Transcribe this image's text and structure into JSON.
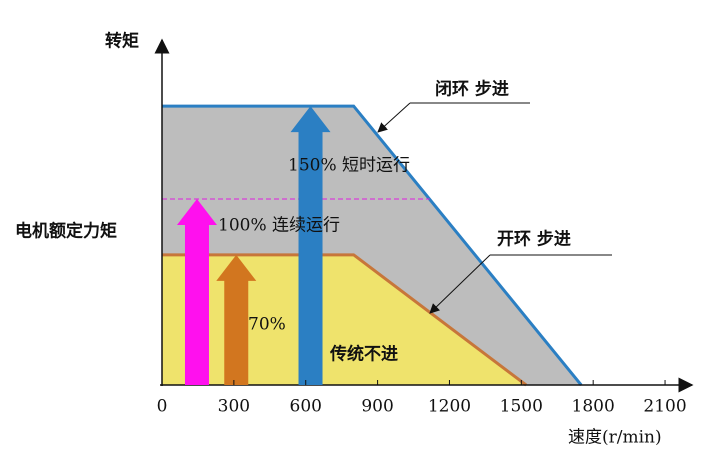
{
  "chart_data": {
    "type": "area",
    "y_label": "转矩",
    "rated_label": "电机额定力矩",
    "x_label": "速度(r/min)",
    "region_label": "传统不进",
    "xlim": [
      0,
      2200
    ],
    "ylim": [
      0,
      185
    ],
    "xticks": [
      0,
      300,
      600,
      900,
      1200,
      1500,
      1800,
      2100
    ],
    "rated_value": 100,
    "series": [
      {
        "name": "闭环 步进",
        "color": "#2b7fc3",
        "fill": "#bdbdbd",
        "x": [
          0,
          800,
          1750
        ],
        "values": [
          150,
          150,
          0
        ]
      },
      {
        "name": "开环 步进",
        "color": "#c7763a",
        "fill": "#efe36c",
        "x": [
          0,
          800,
          1520
        ],
        "values": [
          70,
          70,
          0
        ]
      }
    ],
    "arrows": [
      {
        "label": "150% 短时运行",
        "x": 620,
        "value": 150,
        "color": "#2b7fc3"
      },
      {
        "label": "100% 连续运行",
        "x": 146,
        "value": 100,
        "color": "#ff10ee"
      },
      {
        "label": "70%",
        "x": 310,
        "value": 70,
        "color": "#d2761f"
      }
    ]
  }
}
